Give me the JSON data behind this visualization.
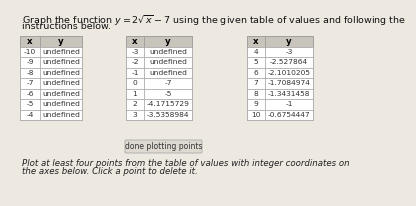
{
  "title_line1": "Graph the function $y = 2\\sqrt{x} - 7$ using the given table of values and following the",
  "title_line2": "instructions below.",
  "table1": {
    "headers": [
      "x",
      "y"
    ],
    "rows": [
      [
        "-10",
        "undefined"
      ],
      [
        "-9",
        "undefined"
      ],
      [
        "-8",
        "undefined"
      ],
      [
        "-7",
        "undefined"
      ],
      [
        "-6",
        "undefined"
      ],
      [
        "-5",
        "undefined"
      ],
      [
        "-4",
        "undefined"
      ]
    ]
  },
  "table2": {
    "headers": [
      "x",
      "y"
    ],
    "rows": [
      [
        "-3",
        "undefined"
      ],
      [
        "-2",
        "undefined"
      ],
      [
        "-1",
        "undefined"
      ],
      [
        "0",
        "-7"
      ],
      [
        "1",
        "-5"
      ],
      [
        "2",
        "-4.1715729"
      ],
      [
        "3",
        "-3.5358984"
      ]
    ]
  },
  "table3": {
    "headers": [
      "x",
      "y"
    ],
    "rows": [
      [
        "4",
        "-3"
      ],
      [
        "5",
        "-2.527864"
      ],
      [
        "6",
        "-2.1010205"
      ],
      [
        "7",
        "-1.7084974"
      ],
      [
        "8",
        "-1.3431458"
      ],
      [
        "9",
        "-1"
      ],
      [
        "10",
        "-0.6754447"
      ]
    ]
  },
  "button_text": "done plotting points",
  "footer_line1": "Plot at least four points from the table of values with integer coordinates on",
  "footer_line2": "the axes below. Click a point to delete it.",
  "bg_color": "#ede9e1",
  "table_bg": "#ffffff",
  "header_bg": "#c8c4bc",
  "cell_border": "#999999",
  "text_color": "#111111",
  "footer_color": "#222222"
}
